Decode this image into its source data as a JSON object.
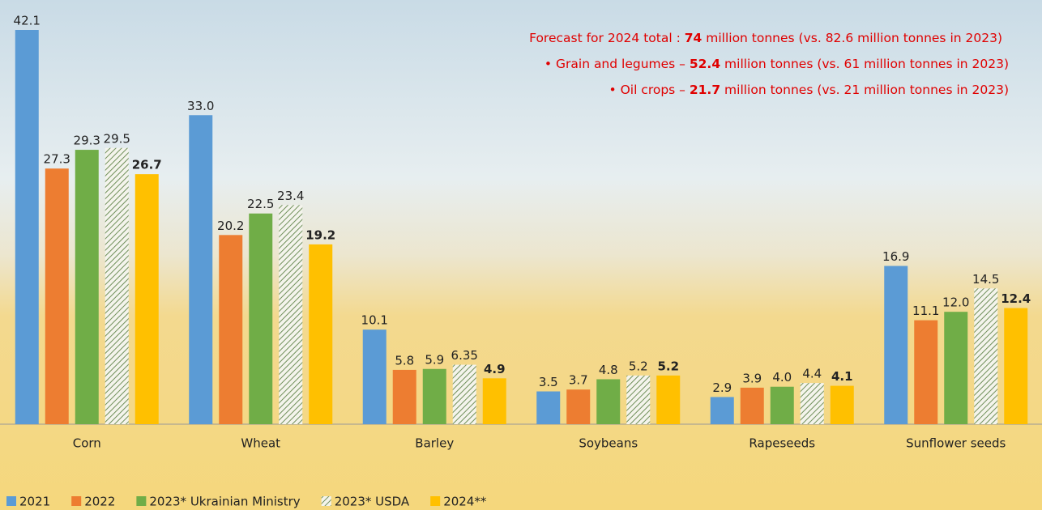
{
  "chart_data": {
    "type": "bar",
    "categories": [
      "Corn",
      "Wheat",
      "Barley",
      "Soybeans",
      "Rapeseeds",
      "Sunflower seeds"
    ],
    "series": [
      {
        "name": "2021",
        "color": "#5b9bd5",
        "values": [
          42.1,
          33.0,
          10.1,
          3.5,
          2.9,
          16.9
        ],
        "value_labels": [
          "42.1",
          "33.0",
          "10.1",
          "3.5",
          "2.9",
          "16.9"
        ]
      },
      {
        "name": "2022",
        "color": "#ed7d31",
        "values": [
          27.3,
          20.2,
          5.8,
          3.7,
          3.9,
          11.1
        ],
        "value_labels": [
          "27.3",
          "20.2",
          "5.8",
          "3.7",
          "3.9",
          "11.1"
        ]
      },
      {
        "name": "2023* Ukrainian Ministry",
        "color": "#70ad47",
        "values": [
          29.3,
          22.5,
          5.9,
          4.8,
          4.0,
          12.0
        ],
        "value_labels": [
          "29.3",
          "22.5",
          "5.9",
          "4.8",
          "4.0",
          "12.0"
        ]
      },
      {
        "name": "2023* USDA",
        "color": "#6f8f5a",
        "hatched": true,
        "values": [
          29.5,
          23.4,
          6.35,
          5.2,
          4.4,
          14.5
        ],
        "value_labels": [
          "29.5",
          "23.4",
          "6.35",
          "5.2",
          "4.4",
          "14.5"
        ]
      },
      {
        "name": "2024**",
        "color": "#ffc000",
        "bold_labels": true,
        "values": [
          26.7,
          19.2,
          4.9,
          5.2,
          4.1,
          12.4
        ],
        "value_labels": [
          "26.7",
          "19.2",
          "4.9",
          "5.2",
          "4.1",
          "12.4"
        ]
      }
    ],
    "annotations": [
      {
        "parts": [
          "Forecast for 2024 total : ",
          "74",
          " million tonnes (vs. 82.6 million tonnes in 2023)"
        ]
      },
      {
        "parts": [
          "Grain and legumes – ",
          "52.4",
          " million tonnes (vs. 61 million tonnes in 2023)"
        ]
      },
      {
        "parts": [
          "Oil crops – ",
          "21.7",
          " million tonnes (vs. 21 million tonnes in 2023)"
        ]
      }
    ],
    "legend": "bottom-left"
  }
}
